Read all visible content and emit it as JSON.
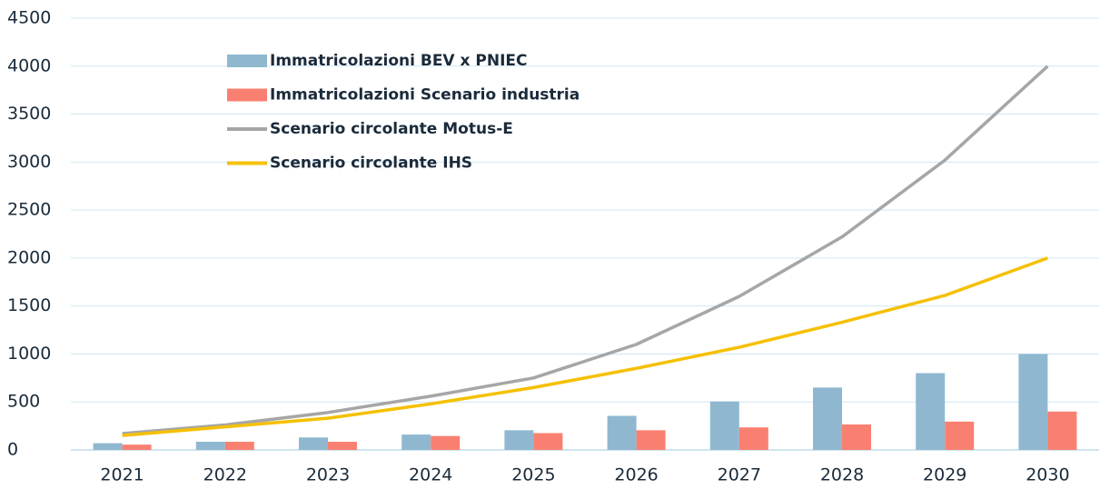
{
  "chart_data": {
    "type": "bar",
    "categories": [
      "2021",
      "2022",
      "2023",
      "2024",
      "2025",
      "2026",
      "2027",
      "2028",
      "2029",
      "2030"
    ],
    "series": [
      {
        "name": "Immatricolazioni BEV x PNIEC",
        "type": "bar",
        "color": "#8fb8d0",
        "values": [
          70,
          85,
          130,
          160,
          205,
          355,
          505,
          650,
          800,
          1000
        ]
      },
      {
        "name": "Immatricolazioni Scenario industria",
        "type": "bar",
        "color": "#f98070",
        "values": [
          55,
          85,
          85,
          145,
          175,
          205,
          235,
          265,
          295,
          400
        ]
      },
      {
        "name": "Scenario circolante Motus-E",
        "type": "line",
        "color": "#a6a6a6",
        "values": [
          170,
          260,
          390,
          560,
          750,
          1100,
          1600,
          2220,
          3020,
          4000
        ]
      },
      {
        "name": "Scenario circolante IHS",
        "type": "line",
        "color": "#f5c000",
        "values": [
          150,
          240,
          330,
          480,
          650,
          850,
          1070,
          1330,
          1610,
          2000
        ]
      }
    ],
    "ylim": [
      0,
      4500
    ],
    "yticks": [
      0,
      500,
      1000,
      1500,
      2000,
      2500,
      3000,
      3500,
      4000,
      4500
    ],
    "grid": true,
    "legend": "top-left"
  }
}
